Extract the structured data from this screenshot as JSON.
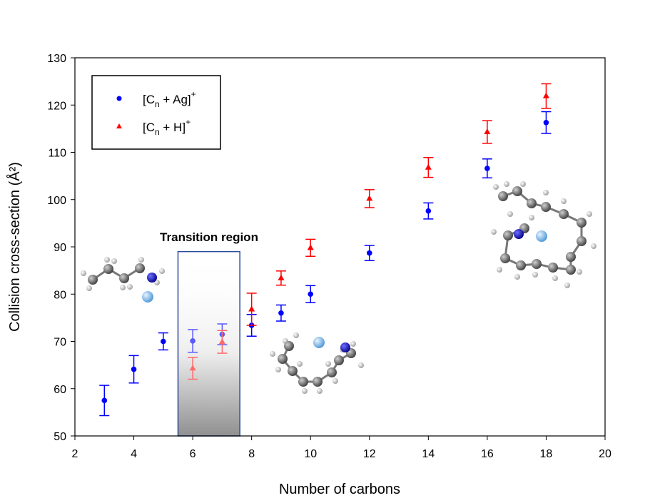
{
  "chart_data": {
    "type": "scatter",
    "title": "",
    "xlabel": "Number of carbons",
    "ylabel": "Collision cross-section (Å²)",
    "xlim": [
      2,
      20
    ],
    "ylim": [
      50,
      130
    ],
    "xticks": [
      2,
      4,
      6,
      8,
      10,
      12,
      14,
      16,
      18,
      20
    ],
    "yticks": [
      50,
      60,
      70,
      80,
      90,
      100,
      110,
      120,
      130
    ],
    "grid": false,
    "legend_placement": "top-left",
    "series": [
      {
        "name": "[Cn + Ag]+",
        "name_base": "[C",
        "name_sub": "n",
        "name_rest": " + Ag]",
        "name_sup": "+",
        "marker": "circle",
        "color": "#0000ff",
        "x": [
          3,
          4,
          5,
          6,
          7,
          8,
          9,
          10,
          12,
          14,
          16,
          18
        ],
        "y": [
          57.5,
          64.1,
          70.0,
          70.1,
          71.5,
          73.4,
          76.0,
          80.0,
          88.7,
          97.6,
          106.6,
          116.3
        ],
        "err": [
          3.2,
          2.9,
          1.8,
          2.4,
          2.2,
          2.3,
          1.7,
          1.8,
          1.6,
          1.7,
          2.0,
          2.3
        ]
      },
      {
        "name": "[Cn + H]+",
        "name_base": "[C",
        "name_sub": "n",
        "name_rest": " + H]",
        "name_sup": "+",
        "marker": "triangle",
        "color": "#ff0000",
        "x": [
          6,
          7,
          8,
          9,
          10,
          12,
          14,
          16,
          18
        ],
        "y": [
          64.3,
          69.9,
          76.8,
          83.4,
          89.8,
          100.2,
          106.8,
          114.3,
          121.9
        ],
        "err": [
          2.3,
          2.4,
          3.4,
          1.5,
          1.8,
          1.9,
          2.1,
          2.4,
          2.6
        ]
      }
    ],
    "annotations": [
      {
        "text": "Transition region",
        "x_range": [
          5.5,
          7.6
        ],
        "y_range": [
          50,
          89
        ]
      }
    ]
  }
}
